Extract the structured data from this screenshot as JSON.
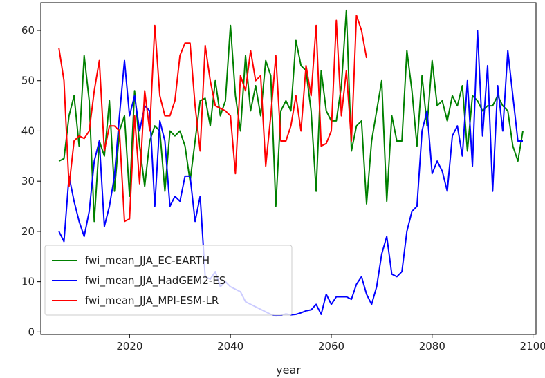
{
  "chart_data": {
    "type": "line",
    "title": "",
    "xlabel": "year",
    "ylabel": "",
    "xlim": [
      2002.4,
      2100.6
    ],
    "ylim": [
      -0.5,
      65.5
    ],
    "xticks": [
      2020,
      2040,
      2060,
      2080,
      2100
    ],
    "yticks": [
      0,
      10,
      20,
      30,
      40,
      50,
      60
    ],
    "grid": false,
    "legend_position": "lower-left",
    "series": [
      {
        "name": "fwi_mean_JJA_EC-EARTH",
        "color": "#008000",
        "x": [
          2006,
          2007,
          2008,
          2009,
          2010,
          2011,
          2012,
          2013,
          2014,
          2015,
          2016,
          2017,
          2018,
          2019,
          2020,
          2021,
          2022,
          2023,
          2024,
          2025,
          2026,
          2027,
          2028,
          2029,
          2030,
          2031,
          2032,
          2033,
          2034,
          2035,
          2036,
          2037,
          2038,
          2039,
          2040,
          2041,
          2042,
          2043,
          2044,
          2045,
          2046,
          2047,
          2048,
          2049,
          2050,
          2051,
          2052,
          2053,
          2054,
          2055,
          2056,
          2057,
          2058,
          2059,
          2060,
          2061,
          2062,
          2063,
          2064,
          2065,
          2066,
          2067,
          2068,
          2069,
          2070,
          2071,
          2072,
          2073,
          2074,
          2075,
          2076,
          2077,
          2078,
          2079,
          2080,
          2081,
          2082,
          2083,
          2084,
          2085,
          2086,
          2087,
          2088,
          2089,
          2090,
          2091,
          2092,
          2093,
          2094,
          2095,
          2096,
          2097,
          2098
        ],
        "y": [
          34,
          34.5,
          43,
          47,
          37,
          55,
          46,
          22,
          38,
          35,
          46,
          28,
          40,
          43,
          27,
          48,
          37,
          29,
          38,
          41,
          40,
          28,
          40,
          39,
          40,
          37,
          30,
          38,
          46,
          46.5,
          41,
          50,
          43,
          46,
          61,
          47,
          40,
          55,
          44,
          49,
          43,
          54,
          51,
          25,
          44,
          46,
          44,
          58,
          53,
          52,
          44,
          28,
          52,
          44,
          42,
          42,
          49,
          64,
          36,
          41,
          42,
          25.5,
          38,
          44,
          50,
          26,
          43,
          38,
          38,
          56,
          48,
          37,
          51,
          41,
          54,
          45,
          46,
          42,
          47,
          45,
          49,
          36,
          47,
          46,
          44,
          45,
          45,
          47,
          45,
          44,
          37,
          34,
          40
        ]
      },
      {
        "name": "fwi_mean_JJA_HadGEM2-ES",
        "color": "#0000ff",
        "x": [
          2006,
          2007,
          2008,
          2009,
          2010,
          2011,
          2012,
          2013,
          2014,
          2015,
          2016,
          2017,
          2018,
          2019,
          2020,
          2021,
          2022,
          2023,
          2024,
          2025,
          2026,
          2027,
          2028,
          2029,
          2030,
          2031,
          2032,
          2033,
          2034,
          2035,
          2036,
          2037,
          2038,
          2039,
          2040,
          2041,
          2042,
          2043,
          2044,
          2045,
          2046,
          2047,
          2048,
          2049,
          2050,
          2051,
          2052,
          2053,
          2054,
          2055,
          2056,
          2057,
          2058,
          2059,
          2060,
          2061,
          2062,
          2063,
          2064,
          2065,
          2066,
          2067,
          2068,
          2069,
          2070,
          2071,
          2072,
          2073,
          2074,
          2075,
          2076,
          2077,
          2078,
          2079,
          2080,
          2081,
          2082,
          2083,
          2084,
          2085,
          2086,
          2087,
          2088,
          2089,
          2090,
          2091,
          2092,
          2093,
          2094,
          2095,
          2096,
          2097,
          2098
        ],
        "y": [
          20,
          18,
          31,
          26,
          22,
          19,
          24,
          34,
          38,
          21,
          25,
          31,
          43,
          54,
          43,
          47,
          40,
          45,
          44,
          25,
          42,
          38,
          25,
          27,
          26,
          31,
          31,
          22,
          27,
          11,
          10.5,
          12,
          9,
          10,
          9,
          8.5,
          8,
          6,
          5.5,
          5,
          4.5,
          4,
          3.5,
          3.2,
          3.3,
          3.6,
          3.4,
          3.5,
          3.8,
          4.2,
          4.4,
          5.5,
          3.5,
          7.5,
          5.5,
          7,
          7,
          7,
          6.5,
          9.5,
          11,
          7.5,
          5.5,
          9,
          15.5,
          19,
          11.5,
          11,
          12,
          20,
          24,
          25,
          40,
          44,
          31.5,
          34,
          32,
          28,
          39,
          41,
          35,
          50,
          33,
          60,
          39,
          53,
          28,
          49,
          40,
          56,
          47,
          38,
          38
        ]
      },
      {
        "name": "fwi_mean_JJA_MPI-ESM-LR",
        "color": "#ff0000",
        "x": [
          2006,
          2007,
          2008,
          2009,
          2010,
          2011,
          2012,
          2013,
          2014,
          2015,
          2016,
          2017,
          2018,
          2019,
          2020,
          2021,
          2022,
          2023,
          2024,
          2025,
          2026,
          2027,
          2028,
          2029,
          2030,
          2031,
          2032,
          2033,
          2034,
          2035,
          2036,
          2037,
          2038,
          2039,
          2040,
          2041,
          2042,
          2043,
          2044,
          2045,
          2046,
          2047,
          2048,
          2049,
          2050,
          2051,
          2052,
          2053,
          2054,
          2055,
          2056,
          2057,
          2058,
          2059,
          2060,
          2061,
          2062,
          2063,
          2064,
          2065,
          2066,
          2067
        ],
        "y": [
          56.5,
          50,
          29,
          38,
          39,
          38.5,
          40,
          48,
          54,
          36,
          41,
          41,
          40,
          22,
          22.5,
          43,
          29.5,
          48,
          40,
          61,
          47,
          43,
          43,
          46,
          55,
          57.5,
          57.5,
          45,
          36,
          57,
          50,
          45,
          44.5,
          44,
          43,
          31.5,
          51,
          48,
          56,
          50,
          51,
          33,
          43,
          55,
          38,
          38,
          41,
          47,
          40,
          53,
          47,
          61,
          37,
          37.5,
          40,
          62,
          43,
          52,
          38,
          63,
          60,
          54.5
        ]
      }
    ]
  }
}
